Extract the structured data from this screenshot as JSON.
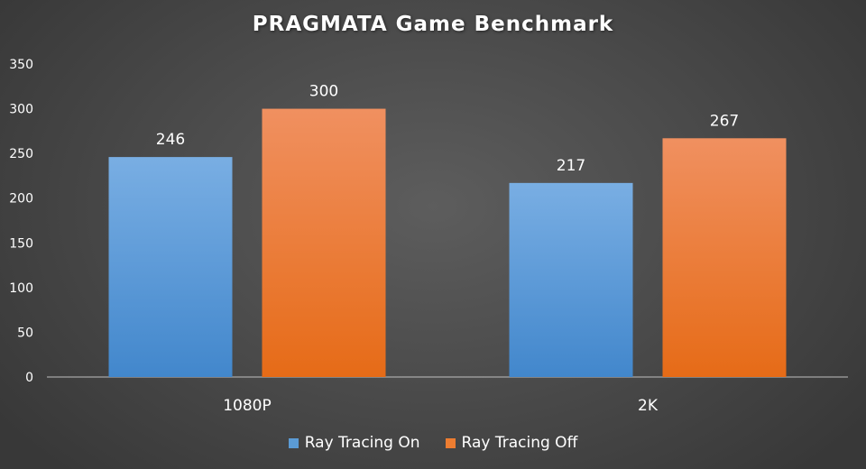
{
  "chart_data": {
    "type": "bar",
    "title": "PRAGMATA Game Benchmark",
    "xlabel": "",
    "ylabel": "",
    "categories": [
      "1080P",
      "2K"
    ],
    "series": [
      {
        "name": "Ray Tracing On",
        "values": [
          246,
          217
        ],
        "color": "#5b9bd5"
      },
      {
        "name": "Ray Tracing Off",
        "values": [
          300,
          267
        ],
        "color": "#ed7d31"
      }
    ],
    "ylim": [
      0,
      350
    ],
    "yticks": [
      0,
      50,
      100,
      150,
      200,
      250,
      300,
      350
    ],
    "grid": false,
    "legend_position": "bottom",
    "data_labels": true
  }
}
